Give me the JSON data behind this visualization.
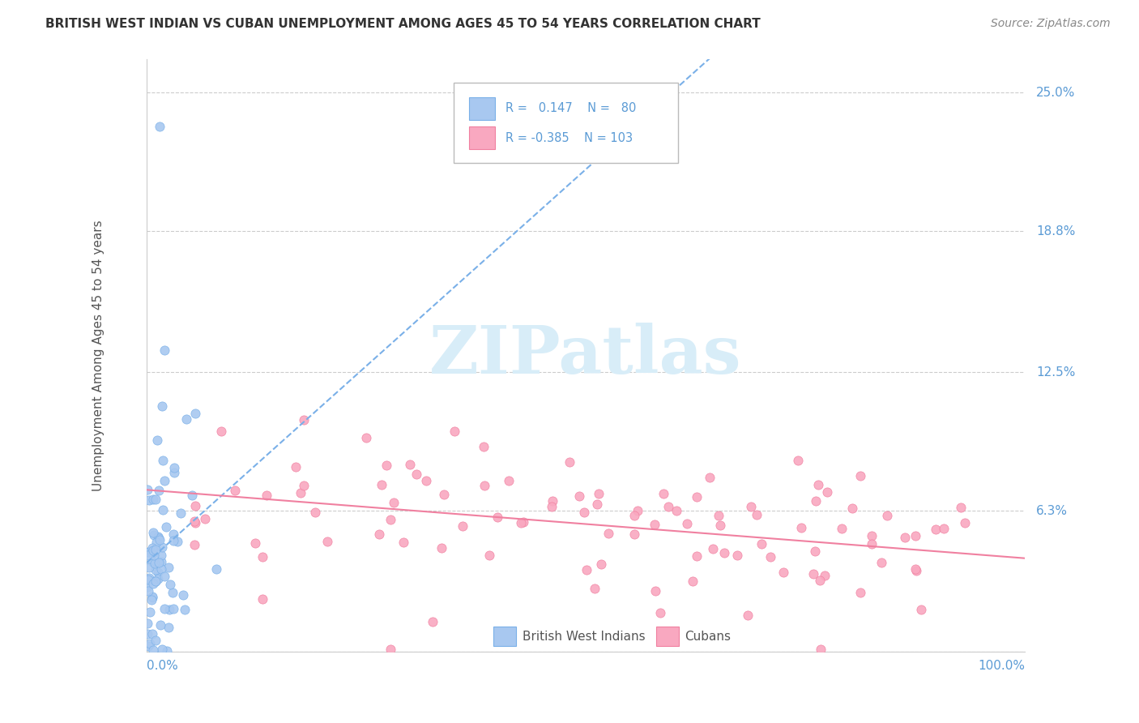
{
  "title": "BRITISH WEST INDIAN VS CUBAN UNEMPLOYMENT AMONG AGES 45 TO 54 YEARS CORRELATION CHART",
  "source": "Source: ZipAtlas.com",
  "ylabel_label": "Unemployment Among Ages 45 to 54 years",
  "ytick_labels": [
    "0%",
    "6.3%",
    "12.5%",
    "18.8%",
    "25.0%"
  ],
  "ytick_values": [
    0.0,
    0.063,
    0.125,
    0.188,
    0.25
  ],
  "xlim": [
    0.0,
    1.0
  ],
  "ylim": [
    0.0,
    0.265
  ],
  "bwi_R": 0.147,
  "bwi_N": 80,
  "cuban_R": -0.385,
  "cuban_N": 103,
  "bwi_color": "#a8c8f0",
  "cuban_color": "#f9a8c0",
  "bwi_edge_color": "#7ab0e8",
  "cuban_edge_color": "#f080a0",
  "bwi_trend_color": "#7ab0e8",
  "cuban_trend_color": "#f080a0",
  "watermark_color": "#d8edf8",
  "background_color": "#ffffff",
  "grid_color": "#cccccc",
  "title_color": "#333333",
  "axis_label_color": "#5b9bd5",
  "legend_text_color": "#5b9bd5"
}
